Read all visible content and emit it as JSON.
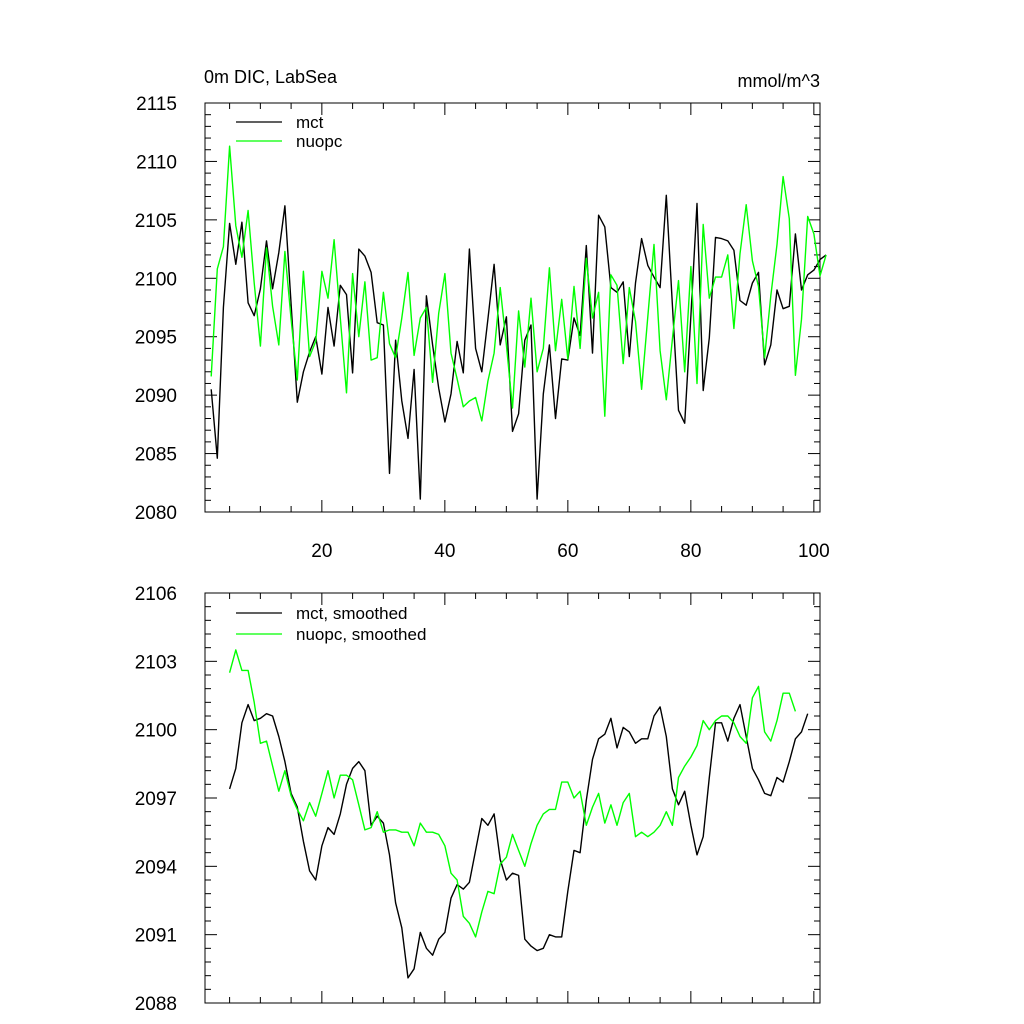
{
  "chart_data": [
    {
      "type": "line",
      "title_left": "0m DIC, LabSea",
      "title_right": "mmol/m^3",
      "xlim": [
        1,
        101
      ],
      "ylim": [
        2080,
        2115
      ],
      "xticks": [
        20,
        40,
        60,
        80,
        100
      ],
      "yticks": [
        2080,
        2085,
        2090,
        2095,
        2100,
        2105,
        2110,
        2115
      ],
      "legend": "top-left",
      "series": [
        {
          "name": "mct",
          "color": "#000000",
          "values": [
            2090.5,
            2084.6,
            2097.5,
            2104.7,
            2101.2,
            2104.8,
            2097.9,
            2096.8,
            2099.1,
            2103.2,
            2099.1,
            2102.2,
            2106.2,
            2097.8,
            2089.4,
            2092.0,
            2093.7,
            2095.0,
            2091.8,
            2097.5,
            2094.2,
            2099.4,
            2098.6,
            2091.9,
            2102.5,
            2101.9,
            2100.5,
            2096.2,
            2096.0,
            2083.3,
            2094.7,
            2089.5,
            2086.3,
            2092.2,
            2081.1,
            2098.5,
            2094.3,
            2090.6,
            2087.7,
            2090.1,
            2094.6,
            2091.9,
            2102.5,
            2094.0,
            2092.0,
            2096.5,
            2101.2,
            2094.3,
            2096.7,
            2086.9,
            2088.4,
            2094.7,
            2096.0,
            2081.1,
            2090.1,
            2094.3,
            2088.0,
            2093.1,
            2093.0,
            2096.6,
            2095.1,
            2102.8,
            2093.6,
            2105.4,
            2104.4,
            2099.2,
            2098.8,
            2099.7,
            2093.3,
            2099.6,
            2103.4,
            2101.1,
            2100.1,
            2099.2,
            2107.1,
            2097.7,
            2088.7,
            2087.6,
            2096.8,
            2106.4,
            2090.4,
            2094.9,
            2103.5,
            2103.4,
            2103.2,
            2102.4,
            2098.1,
            2097.7,
            2099.6,
            2100.5,
            2092.6,
            2094.3,
            2099.0,
            2097.4,
            2097.6,
            2103.8,
            2099.0,
            2100.3,
            2100.7,
            2101.6,
            2102.0
          ]
        },
        {
          "name": "nuopc",
          "color": "#00ff00",
          "values": [
            2091.6,
            2100.8,
            2102.7,
            2111.3,
            2104.5,
            2101.8,
            2105.8,
            2099.6,
            2094.2,
            2102.6,
            2097.6,
            2094.3,
            2102.3,
            2096.5,
            2091.3,
            2100.6,
            2093.3,
            2094.6,
            2100.6,
            2098.3,
            2103.3,
            2096.6,
            2090.2,
            2100.4,
            2095.0,
            2099.7,
            2093.0,
            2093.2,
            2098.8,
            2094.4,
            2093.2,
            2096.6,
            2100.5,
            2093.4,
            2096.6,
            2097.5,
            2091.1,
            2097.0,
            2100.4,
            2093.6,
            2091.4,
            2089.0,
            2089.5,
            2089.8,
            2087.8,
            2091.2,
            2093.6,
            2099.2,
            2094.3,
            2088.9,
            2097.2,
            2092.4,
            2098.3,
            2092.0,
            2094.0,
            2100.9,
            2093.8,
            2098.2,
            2093.1,
            2099.3,
            2094.0,
            2101.7,
            2096.6,
            2098.8,
            2088.2,
            2100.3,
            2099.4,
            2092.7,
            2099.2,
            2096.3,
            2090.5,
            2096.7,
            2102.9,
            2093.8,
            2089.6,
            2094.8,
            2099.8,
            2092.0,
            2101.0,
            2091.0,
            2104.6,
            2098.3,
            2100.1,
            2100.1,
            2102.0,
            2095.7,
            2102.1,
            2106.3,
            2101.5,
            2099.3,
            2093.2,
            2098.5,
            2102.9,
            2108.7,
            2105.1,
            2091.7,
            2096.5,
            2105.3,
            2103.8,
            2100.2,
            2102.0
          ]
        }
      ]
    },
    {
      "type": "line",
      "ylim": [
        2088,
        2106
      ],
      "xlim": [
        1,
        101
      ],
      "yticks": [
        2088,
        2091,
        2094,
        2097,
        2100,
        2103,
        2106
      ],
      "legend": "top-left",
      "series": [
        {
          "name": "mct, smoothed",
          "color": "#000000",
          "values": [
            2097.4,
            2098.3,
            2100.3,
            2101.1,
            2100.4,
            2100.5,
            2100.7,
            2100.6,
            2099.7,
            2098.6,
            2097.2,
            2096.6,
            2095.1,
            2093.8,
            2093.4,
            2094.9,
            2095.7,
            2095.4,
            2096.3,
            2097.6,
            2098.3,
            2098.6,
            2098.2,
            2095.8,
            2096.2,
            2095.9,
            2094.5,
            2092.4,
            2091.3,
            2089.1,
            2089.5,
            2091.1,
            2090.4,
            2090.1,
            2090.8,
            2091.1,
            2092.6,
            2093.2,
            2093.0,
            2093.3,
            2094.7,
            2096.1,
            2095.8,
            2096.3,
            2094.3,
            2093.4,
            2093.7,
            2093.6,
            2090.8,
            2090.5,
            2090.3,
            2090.4,
            2091.0,
            2090.9,
            2090.9,
            2092.9,
            2094.7,
            2094.6,
            2096.9,
            2098.7,
            2099.6,
            2099.8,
            2100.5,
            2099.2,
            2100.1,
            2099.9,
            2099.4,
            2099.6,
            2099.6,
            2100.6,
            2101.0,
            2099.7,
            2097.4,
            2096.7,
            2097.3,
            2095.8,
            2094.5,
            2095.3,
            2097.9,
            2100.3,
            2100.3,
            2099.5,
            2100.5,
            2101.1,
            2099.7,
            2098.3,
            2097.8,
            2097.2,
            2097.1,
            2097.9,
            2097.7,
            2098.6,
            2099.6,
            2099.9,
            2100.7
          ]
        },
        {
          "name": "nuopc, smoothed",
          "color": "#00ff00",
          "values": [
            2102.5,
            2103.5,
            2102.6,
            2102.6,
            2101.2,
            2099.4,
            2099.5,
            2098.4,
            2097.3,
            2098.2,
            2097.1,
            2096.5,
            2096.0,
            2096.8,
            2096.2,
            2097.2,
            2098.2,
            2097.0,
            2098.0,
            2098.0,
            2097.8,
            2096.7,
            2095.6,
            2095.7,
            2096.4,
            2095.5,
            2095.6,
            2095.6,
            2095.5,
            2095.5,
            2094.9,
            2095.9,
            2095.5,
            2095.5,
            2095.4,
            2094.9,
            2093.7,
            2093.4,
            2091.8,
            2091.5,
            2090.9,
            2092.0,
            2092.9,
            2092.8,
            2094.1,
            2094.4,
            2095.4,
            2094.7,
            2094.0,
            2095.0,
            2095.8,
            2096.3,
            2096.5,
            2096.5,
            2097.7,
            2097.7,
            2097.0,
            2097.3,
            2095.8,
            2096.6,
            2097.2,
            2095.9,
            2096.7,
            2095.8,
            2096.8,
            2097.2,
            2095.3,
            2095.5,
            2095.3,
            2095.5,
            2095.8,
            2096.4,
            2095.8,
            2097.9,
            2098.4,
            2098.8,
            2099.3,
            2100.4,
            2100.0,
            2100.4,
            2100.6,
            2100.6,
            2100.3,
            2099.7,
            2099.4,
            2101.4,
            2101.9,
            2099.9,
            2099.5,
            2100.4,
            2101.6,
            2101.6,
            2100.8
          ]
        }
      ]
    }
  ]
}
